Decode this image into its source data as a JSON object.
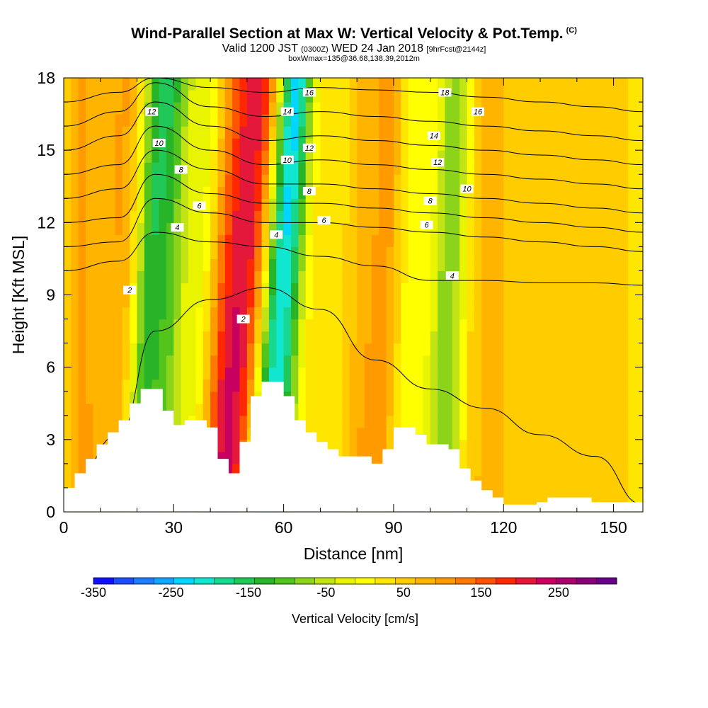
{
  "title": {
    "main": "Wind-Parallel Section at Max W: Vertical Velocity & Pot.Temp.",
    "mark": "(C)",
    "valid": "Valid 1200 JST",
    "valid_z": "(0300Z)",
    "valid_date": "WED 24 Jan 2018",
    "fcst": "[9hrFcst@2144z]",
    "box": "boxWmax=135@36.68,138.39,2012m"
  },
  "chart_data": {
    "type": "heatmap",
    "xlabel": "Distance [nm]",
    "ylabel": "Height [Kft MSL]",
    "xlim": [
      0,
      158
    ],
    "ylim": [
      0,
      18
    ],
    "xticks": [
      0,
      30,
      60,
      90,
      120,
      150
    ],
    "yticks": [
      0,
      3,
      6,
      9,
      12,
      15,
      18
    ],
    "colorbar": {
      "label": "Vertical Velocity [cm/s]",
      "min": -350,
      "max": 300,
      "step": 25,
      "tick_values": [
        -350,
        -250,
        -150,
        -50,
        50,
        150,
        250
      ],
      "tick_labels": [
        "-350",
        "-250",
        "-150",
        "-50",
        "50",
        "150",
        "250"
      ],
      "colors": [
        "#1010ff",
        "#1e4cff",
        "#1e7cff",
        "#10a6ff",
        "#00d6ff",
        "#10e6d0",
        "#18d890",
        "#20c858",
        "#28b428",
        "#52c41c",
        "#8cd41a",
        "#c2e414",
        "#e8f400",
        "#ffff00",
        "#ffe600",
        "#ffcc00",
        "#ffb400",
        "#ff9a00",
        "#ff7a00",
        "#ff5400",
        "#ff2800",
        "#e4183a",
        "#c80060",
        "#a8006e",
        "#880078",
        "#680088"
      ]
    },
    "velocity_bands": [
      {
        "x": 23,
        "w": -160,
        "width": 4.5,
        "tilt": 3
      },
      {
        "x": 29,
        "w": -100,
        "width": 4.0,
        "tilt": 2
      },
      {
        "x": 50,
        "w": 150,
        "width": 6.0,
        "tilt": 5
      },
      {
        "x": 44,
        "w": 90,
        "width": 5.0,
        "tilt": 4
      },
      {
        "x": 58,
        "w": -200,
        "width": 4.5,
        "tilt": 4
      },
      {
        "x": 62,
        "w": -110,
        "width": 4.0,
        "tilt": 3
      },
      {
        "x": 37,
        "w": -60,
        "width": 5.0,
        "tilt": 2
      },
      {
        "x": 16,
        "w": 60,
        "width": 6.0,
        "tilt": 1
      },
      {
        "x": 5,
        "w": 55,
        "width": 5.0,
        "tilt": 0
      },
      {
        "x": 87,
        "w": 70,
        "width": 4.0,
        "tilt": 2
      },
      {
        "x": 81,
        "w": 40,
        "width": 3.0,
        "tilt": 1
      },
      {
        "x": 96,
        "w": -40,
        "width": 5.0,
        "tilt": 1
      },
      {
        "x": 104,
        "w": -100,
        "width": 3.5,
        "tilt": 2
      },
      {
        "x": 108,
        "w": -60,
        "width": 3.0,
        "tilt": 2
      },
      {
        "x": 116,
        "w": 35,
        "width": 8.0,
        "tilt": 0
      },
      {
        "x": 140,
        "w": 30,
        "width": 10.0,
        "tilt": 0
      }
    ],
    "terrain": {
      "x": [
        0,
        3,
        6,
        9,
        12,
        15,
        18,
        21,
        24,
        27,
        30,
        33,
        36,
        39,
        42,
        45,
        48,
        51,
        54,
        57,
        60,
        63,
        66,
        69,
        72,
        75,
        78,
        81,
        84,
        87,
        90,
        93,
        96,
        99,
        102,
        105,
        108,
        111,
        114,
        117,
        120,
        123,
        126,
        129,
        132,
        135,
        138,
        141,
        144,
        147,
        150,
        153,
        156,
        158
      ],
      "height": [
        1.0,
        1.6,
        2.2,
        2.8,
        3.3,
        3.8,
        4.5,
        5.1,
        5.1,
        4.2,
        3.6,
        3.8,
        3.8,
        3.5,
        2.2,
        1.6,
        2.9,
        4.8,
        5.4,
        5.4,
        4.8,
        3.8,
        3.3,
        2.9,
        2.6,
        2.3,
        2.3,
        2.3,
        2.0,
        2.6,
        3.5,
        3.5,
        3.2,
        2.8,
        2.8,
        2.6,
        1.8,
        1.3,
        0.9,
        0.6,
        0.3,
        0.3,
        0.3,
        0.4,
        0.6,
        0.6,
        0.6,
        0.6,
        0.4,
        0.4,
        0.4,
        0.4,
        0.4,
        0.4
      ]
    },
    "theta_contours": [
      {
        "label": "2",
        "y": [
          0.3,
          3.2,
          7.5,
          8.8,
          9.3,
          8.4,
          6.3,
          5.1,
          4.3,
          3.2,
          2.3,
          0.3
        ]
      },
      {
        "label": "4",
        "y": [
          10.0,
          10.4,
          11.6,
          11.2,
          11.0,
          10.6,
          10.2,
          9.6,
          9.6,
          9.5,
          9.5,
          9.4
        ]
      },
      {
        "label": "6",
        "y": [
          11.0,
          11.2,
          13.0,
          12.4,
          12.0,
          12.0,
          11.8,
          11.6,
          11.4,
          11.2,
          11.0,
          10.8
        ]
      },
      {
        "label": "8",
        "y": [
          12.0,
          12.2,
          14.0,
          13.2,
          12.8,
          12.8,
          12.6,
          12.4,
          12.2,
          12.0,
          11.8,
          11.6
        ]
      },
      {
        "label": "10",
        "y": [
          13.0,
          13.4,
          15.0,
          14.2,
          13.6,
          13.6,
          13.4,
          13.2,
          13.0,
          12.8,
          12.6,
          12.4
        ]
      },
      {
        "label": "12",
        "y": [
          14.0,
          14.4,
          16.0,
          15.0,
          14.4,
          14.6,
          14.4,
          14.2,
          14.0,
          13.8,
          13.6,
          13.4
        ]
      },
      {
        "label": "14",
        "y": [
          15.0,
          15.6,
          17.0,
          16.0,
          15.4,
          15.6,
          15.4,
          15.2,
          15.0,
          14.8,
          14.6,
          14.4
        ]
      },
      {
        "label": "16",
        "y": [
          16.0,
          16.6,
          17.8,
          16.8,
          16.4,
          16.6,
          16.4,
          16.2,
          16.0,
          15.8,
          15.6,
          15.4
        ]
      },
      {
        "label": "18",
        "y": [
          17.0,
          17.4,
          18.0,
          17.6,
          17.4,
          17.6,
          17.5,
          17.4,
          17.2,
          17.0,
          16.8,
          16.6
        ]
      }
    ],
    "theta_x": [
      0,
      15,
      25,
      40,
      55,
      70,
      85,
      100,
      115,
      130,
      145,
      158
    ],
    "theta_label_points": [
      {
        "label": "2",
        "x": 18,
        "y": 9.2
      },
      {
        "label": "2",
        "x": 49,
        "y": 8.0
      },
      {
        "label": "4",
        "x": 31,
        "y": 11.8
      },
      {
        "label": "4",
        "x": 58,
        "y": 11.5
      },
      {
        "label": "4",
        "x": 106,
        "y": 9.8
      },
      {
        "label": "6",
        "x": 37,
        "y": 12.7
      },
      {
        "label": "6",
        "x": 71,
        "y": 12.1
      },
      {
        "label": "6",
        "x": 99,
        "y": 11.9
      },
      {
        "label": "8",
        "x": 32,
        "y": 14.2
      },
      {
        "label": "8",
        "x": 67,
        "y": 13.3
      },
      {
        "label": "8",
        "x": 100,
        "y": 12.9
      },
      {
        "label": "10",
        "x": 26,
        "y": 15.3
      },
      {
        "label": "10",
        "x": 61,
        "y": 14.6
      },
      {
        "label": "10",
        "x": 110,
        "y": 13.4
      },
      {
        "label": "12",
        "x": 24,
        "y": 16.6
      },
      {
        "label": "12",
        "x": 67,
        "y": 15.1
      },
      {
        "label": "12",
        "x": 102,
        "y": 14.5
      },
      {
        "label": "14",
        "x": 61,
        "y": 16.6
      },
      {
        "label": "14",
        "x": 101,
        "y": 15.6
      },
      {
        "label": "16",
        "x": 67,
        "y": 17.4
      },
      {
        "label": "16",
        "x": 113,
        "y": 16.6
      },
      {
        "label": "18",
        "x": 104,
        "y": 17.4
      }
    ]
  }
}
